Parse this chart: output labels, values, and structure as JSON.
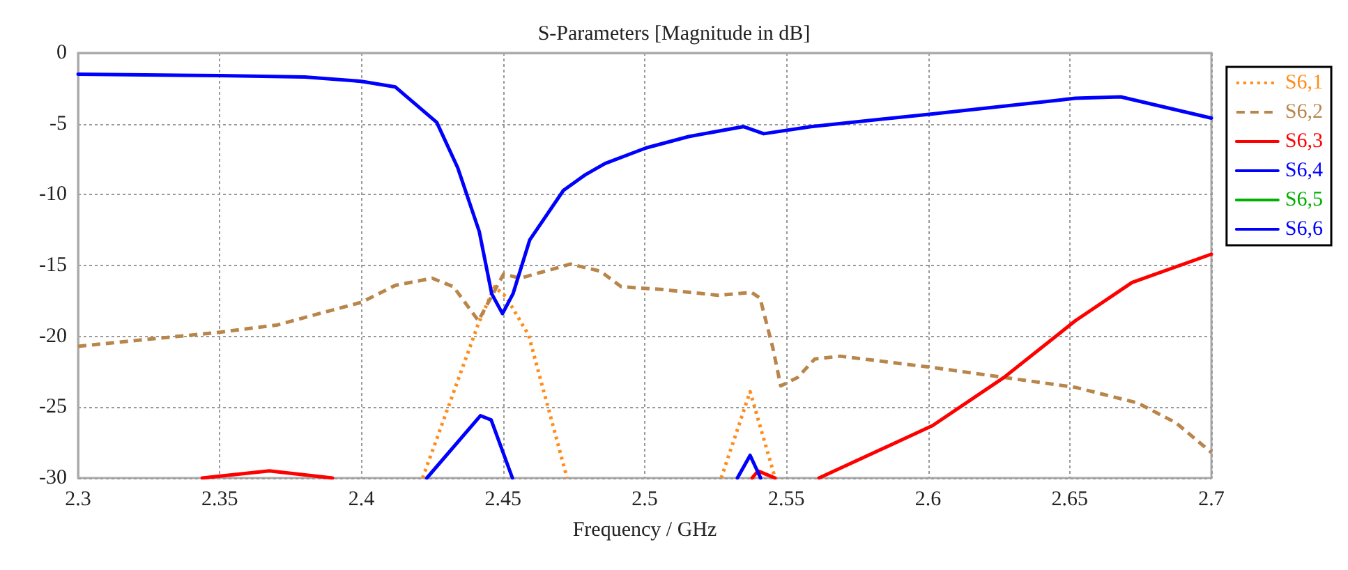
{
  "chart_data": {
    "type": "line",
    "title": "S-Parameters [Magnitude in dB]",
    "xlabel": "Frequency / GHz",
    "xlim": [
      2.3,
      2.7
    ],
    "xticks": [
      2.3,
      2.35,
      2.4,
      2.45,
      2.5,
      2.55,
      2.6,
      2.65,
      2.7
    ],
    "ylim": [
      -30,
      0
    ],
    "yticks": [
      -30,
      -25,
      -20,
      -15,
      -10,
      -5,
      0
    ],
    "grid": true,
    "legend": "top right",
    "marker": "none",
    "series": [
      {
        "name": "S6,1",
        "color": "#ff8c1a",
        "line_style": "dotted",
        "x": [
          2.4216,
          2.4413,
          2.447,
          2.451,
          2.459,
          2.4726,
          2.5,
          2.527,
          2.5372,
          2.546
        ],
        "values": [
          -30,
          -19.1,
          -16.5,
          -17.2,
          -19.9,
          -30,
          null,
          -30,
          -23.9,
          -30
        ]
      },
      {
        "name": "S6,2",
        "color": "#b8864b",
        "line_style": "dashed",
        "x": [
          2.3,
          2.3505,
          2.3703,
          2.385,
          2.4,
          2.412,
          2.425,
          2.4325,
          2.4413,
          2.4502,
          2.456,
          2.4738,
          2.4843,
          2.4917,
          2.5066,
          2.5258,
          2.5377,
          2.5407,
          2.5452,
          2.548,
          2.554,
          2.56,
          2.569,
          2.6016,
          2.6268,
          2.652,
          2.674,
          2.6875,
          2.7
        ],
        "values": [
          -20.7,
          -19.7,
          -19.2,
          -18.4,
          -17.6,
          -16.4,
          -15.9,
          -16.5,
          -18.9,
          -15.6,
          -15.9,
          -14.9,
          -15.4,
          -16.5,
          -16.7,
          -17.1,
          -16.9,
          -17.3,
          -20.8,
          -23.5,
          -22.9,
          -21.6,
          -21.4,
          -22.2,
          -22.9,
          -23.6,
          -24.7,
          -26.1,
          -28.2
        ]
      },
      {
        "name": "S6,3",
        "color": "#ff0000",
        "line_style": "solid",
        "x": [
          2.3438,
          2.3675,
          2.3898,
          2.46,
          2.5379,
          2.54,
          2.546,
          2.55,
          2.5615,
          2.6016,
          2.6268,
          2.652,
          2.672,
          2.7
        ],
        "values": [
          -30,
          -29.5,
          -30,
          null,
          -30,
          -29.5,
          -30,
          null,
          -30,
          -26.3,
          -22.9,
          -18.9,
          -16.2,
          -14.2
        ]
      },
      {
        "name": "S6,4",
        "color": "#0000ff",
        "line_style": "solid",
        "x": [
          2.4231,
          2.442,
          2.4458,
          2.4533,
          2.5,
          2.5327,
          2.5372,
          2.5409
        ],
        "values": [
          -30,
          -25.6,
          -25.9,
          -30,
          null,
          -30,
          -28.4,
          -30
        ]
      },
      {
        "name": "S6,5",
        "color": "#00b000",
        "line_style": "solid"
      },
      {
        "name": "S6,6",
        "color": "#0000ff",
        "line_style": "solid",
        "x": [
          2.3,
          2.35,
          2.38,
          2.4,
          2.412,
          2.4266,
          2.434,
          2.4416,
          2.446,
          2.4498,
          2.4535,
          2.4594,
          2.4713,
          2.479,
          2.486,
          2.5005,
          2.5155,
          2.5348,
          2.542,
          2.5587,
          2.6016,
          2.652,
          2.668,
          2.7
        ],
        "values": [
          -1.5,
          -1.6,
          -1.7,
          -2.0,
          -2.4,
          -4.9,
          -8.1,
          -12.6,
          -17.0,
          -18.4,
          -17.0,
          -13.2,
          -9.7,
          -8.6,
          -7.8,
          -6.7,
          -5.9,
          -5.2,
          -5.7,
          -5.2,
          -4.3,
          -3.2,
          -3.1,
          -4.6
        ]
      }
    ]
  }
}
